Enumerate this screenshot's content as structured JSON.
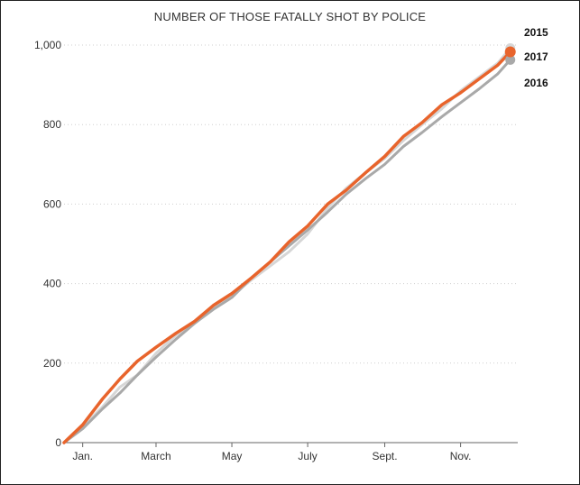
{
  "chart_data": {
    "type": "line",
    "title": "NUMBER OF THOSE FATALLY SHOT BY POLICE",
    "xlabel": "",
    "ylabel": "",
    "y_ticks": [
      0,
      200,
      400,
      600,
      800,
      1000
    ],
    "y_tick_labels": [
      "0",
      "200",
      "400",
      "600",
      "800",
      "1,000"
    ],
    "ylim": [
      0,
      1000
    ],
    "x_domain_days": [
      0,
      365
    ],
    "x_ticks": [
      {
        "day": 15,
        "label": "Jan."
      },
      {
        "day": 74,
        "label": "March"
      },
      {
        "day": 135,
        "label": "May"
      },
      {
        "day": 196,
        "label": "July"
      },
      {
        "day": 258,
        "label": "Sept."
      },
      {
        "day": 319,
        "label": "Nov."
      }
    ],
    "grid": "horizontal dotted",
    "series": [
      {
        "name": "2015",
        "color": "#d6d6d6",
        "x": [
          0,
          15,
          31,
          45,
          59,
          74,
          90,
          105,
          120,
          135,
          151,
          166,
          181,
          196,
          212,
          227,
          243,
          258,
          273,
          288,
          304,
          319,
          334,
          349,
          359
        ],
        "y": [
          0,
          40,
          90,
          140,
          170,
          225,
          270,
          300,
          340,
          370,
          410,
          445,
          480,
          525,
          590,
          640,
          680,
          715,
          760,
          800,
          840,
          885,
          920,
          955,
          992
        ]
      },
      {
        "name": "2016",
        "color": "#a9a9a9",
        "x": [
          0,
          15,
          31,
          45,
          59,
          74,
          90,
          105,
          120,
          135,
          151,
          166,
          181,
          196,
          212,
          227,
          243,
          258,
          273,
          288,
          304,
          319,
          334,
          349,
          359
        ],
        "y": [
          0,
          35,
          85,
          125,
          170,
          215,
          260,
          300,
          335,
          365,
          415,
          455,
          495,
          535,
          580,
          625,
          665,
          700,
          745,
          780,
          820,
          855,
          890,
          928,
          963
        ]
      },
      {
        "name": "2017",
        "color": "#e8642c",
        "x": [
          0,
          15,
          31,
          45,
          59,
          74,
          90,
          105,
          120,
          135,
          151,
          166,
          181,
          196,
          212,
          227,
          243,
          258,
          273,
          288,
          304,
          319,
          334,
          349,
          359
        ],
        "y": [
          0,
          45,
          110,
          160,
          205,
          240,
          275,
          305,
          345,
          375,
          415,
          455,
          505,
          545,
          600,
          635,
          680,
          720,
          770,
          805,
          850,
          880,
          915,
          950,
          983
        ]
      }
    ],
    "end_labels": [
      "2015",
      "2017",
      "2016"
    ]
  }
}
